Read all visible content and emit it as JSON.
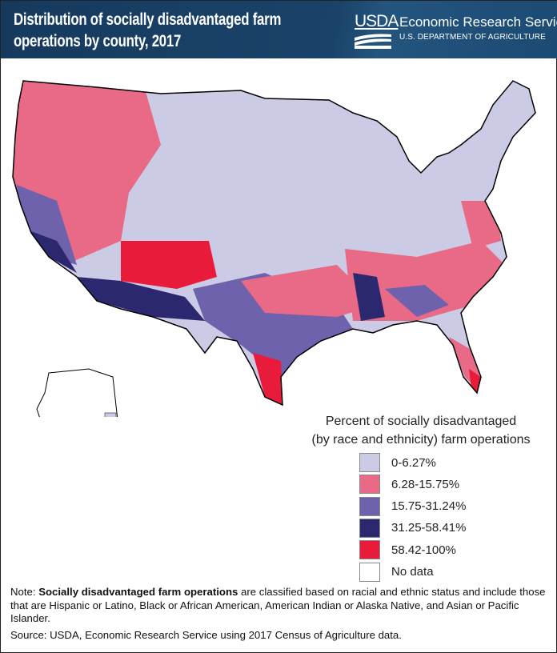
{
  "header": {
    "title": "Distribution of socially disadvantaged farm operations by county, 2017",
    "logo_text": "USDA",
    "agency": "Economic Research Service",
    "department": "U.S. DEPARTMENT OF AGRICULTURE"
  },
  "legend": {
    "title_line1": "Percent of socially disadvantaged",
    "title_line2": "(by race and ethnicity) farm operations",
    "items": [
      {
        "label": "0-6.27%",
        "color": "#cccbe6"
      },
      {
        "label": "6.28-15.75%",
        "color": "#e86a87"
      },
      {
        "label": "15.75-31.24%",
        "color": "#6e62ac"
      },
      {
        "label": "31.25-58.41%",
        "color": "#2b2870"
      },
      {
        "label": "58.42-100%",
        "color": "#e81c3a"
      },
      {
        "label": "No data",
        "color": "#ffffff"
      }
    ]
  },
  "note": {
    "prefix": "Note: ",
    "bold": "Socially disadvantaged farm operations",
    "text": " are classified based on racial and ethnic status and include those that are Hispanic or Latino, Black or African American, American Indian or Alaska Native, and Asian or Pacific Islander."
  },
  "source": "Source: USDA, Economic Research Service using 2017 Census of Agriculture data."
}
